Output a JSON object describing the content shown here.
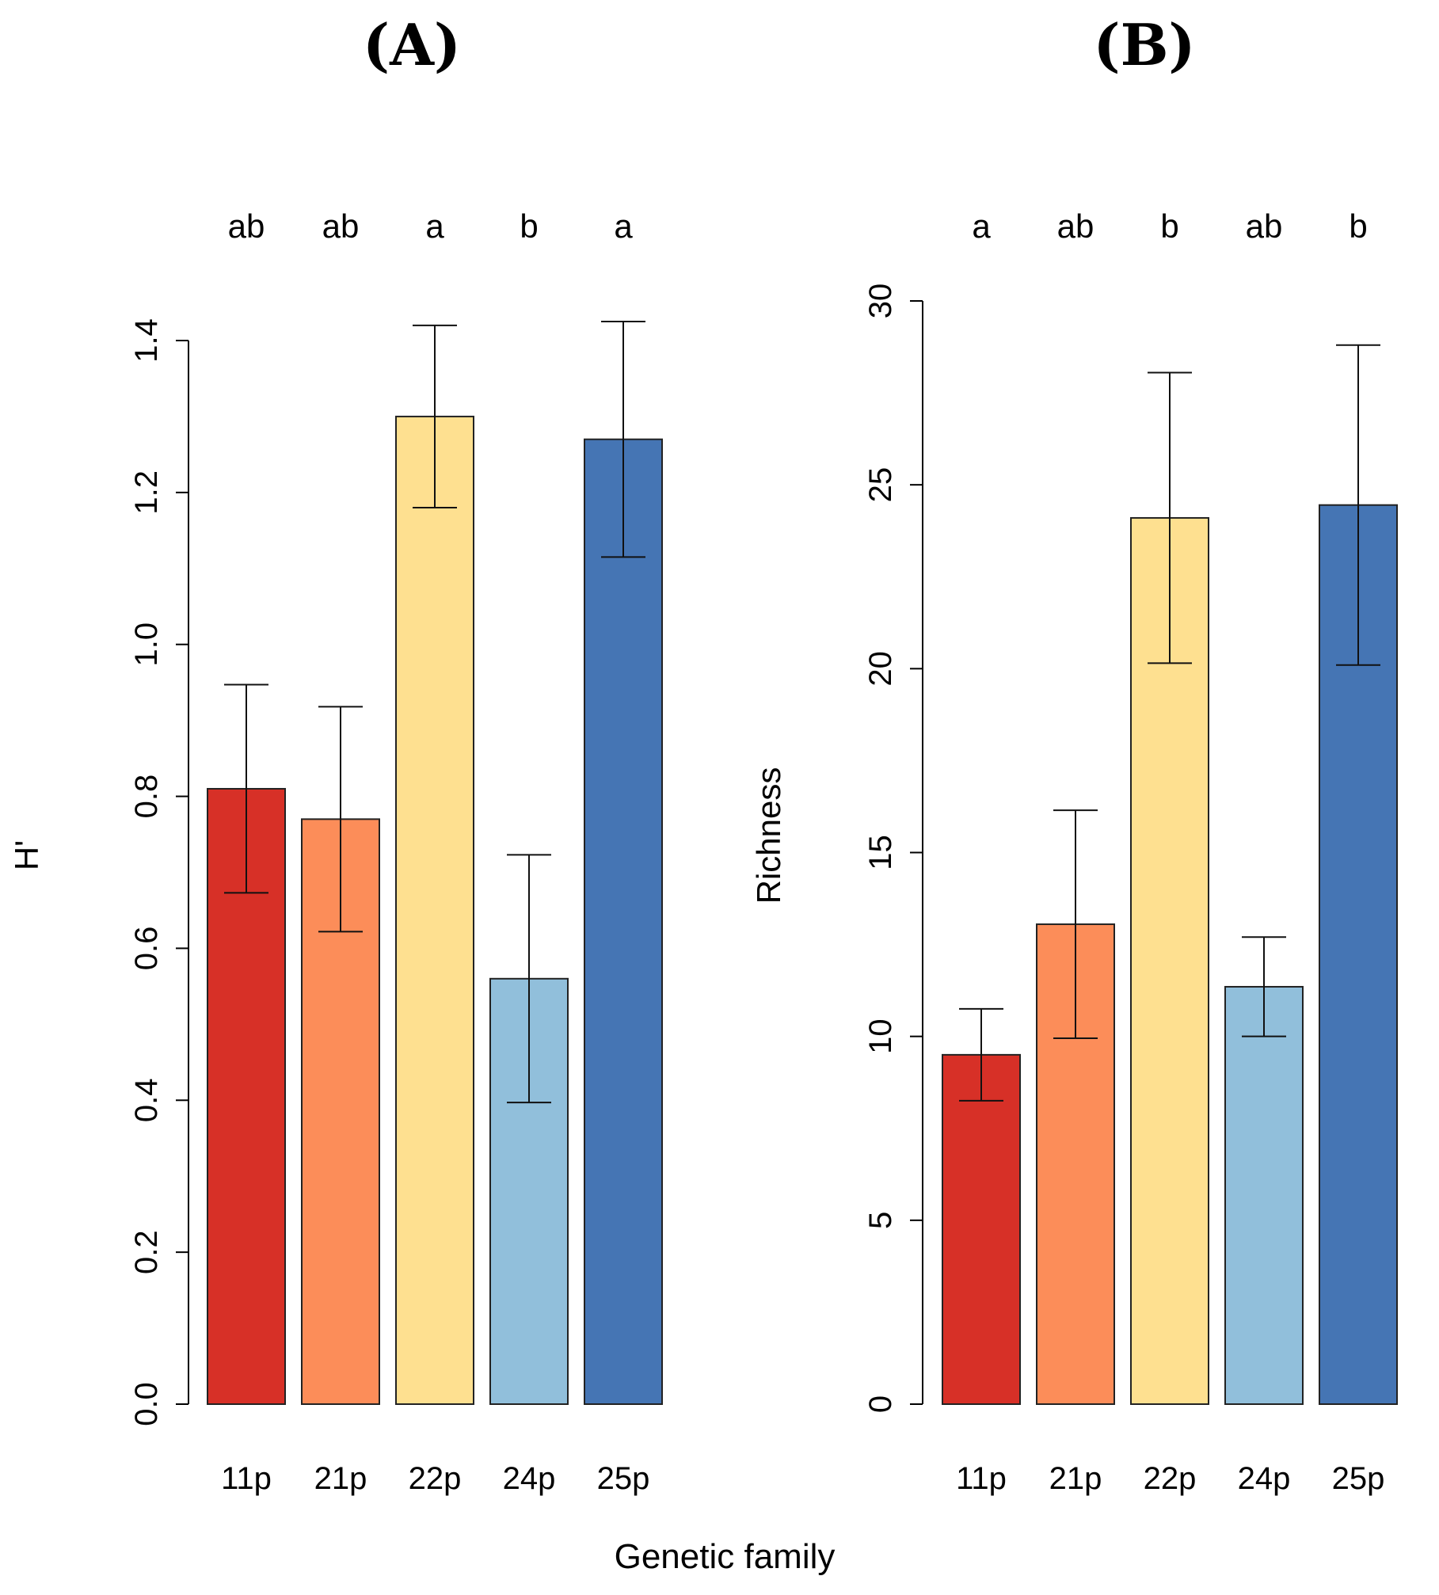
{
  "figure": {
    "xlabel": "Genetic family"
  },
  "chart_data": [
    {
      "panel": "(A)",
      "type": "bar",
      "categories": [
        "11p",
        "21p",
        "22p",
        "24p",
        "25p"
      ],
      "values": [
        0.81,
        0.77,
        1.3,
        0.56,
        1.27
      ],
      "errors": [
        0.137,
        0.148,
        0.12,
        0.163,
        0.155
      ],
      "significance": [
        "ab",
        "ab",
        "a",
        "b",
        "a"
      ],
      "colors": [
        "#d73027",
        "#fc8d59",
        "#fee090",
        "#91bfdb",
        "#4575b4"
      ],
      "ylabel": "H'",
      "xlabel": "Genetic family",
      "ylim": [
        0,
        1.4
      ],
      "yticks": [
        0.0,
        0.2,
        0.4,
        0.6,
        0.8,
        1.0,
        1.2,
        1.4
      ],
      "ytick_labels": [
        "0.0",
        "0.2",
        "0.4",
        "0.6",
        "0.8",
        "1.0",
        "1.2",
        "1.4"
      ]
    },
    {
      "panel": "(B)",
      "type": "bar",
      "categories": [
        "11p",
        "21p",
        "22p",
        "24p",
        "25p"
      ],
      "values": [
        9.5,
        13.05,
        24.1,
        11.35,
        24.45
      ],
      "errors": [
        1.25,
        3.1,
        3.95,
        1.35,
        4.35
      ],
      "significance": [
        "a",
        "ab",
        "b",
        "ab",
        "b"
      ],
      "colors": [
        "#d73027",
        "#fc8d59",
        "#fee090",
        "#91bfdb",
        "#4575b4"
      ],
      "ylabel": "Richness",
      "xlabel": "Genetic family",
      "ylim": [
        0,
        30
      ],
      "yticks": [
        0,
        5,
        10,
        15,
        20,
        25,
        30
      ],
      "ytick_labels": [
        "0",
        "5",
        "10",
        "15",
        "20",
        "25",
        "30"
      ]
    }
  ]
}
